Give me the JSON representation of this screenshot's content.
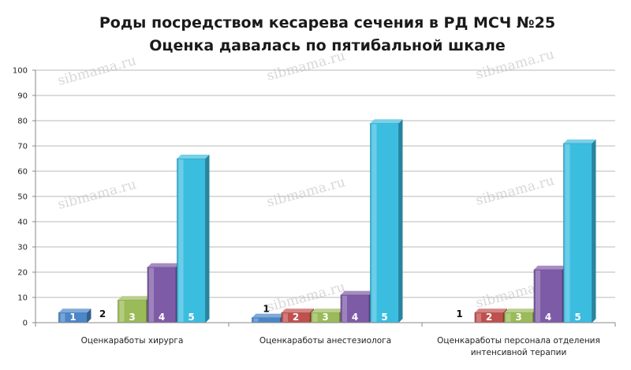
{
  "chart_data": {
    "type": "bar",
    "title": "Роды посредством кесарева сечения в РД МСЧ №25",
    "subtitle": "Оценка давалась по пятибальной шкале",
    "xlabel": "",
    "ylabel": "",
    "ylim": [
      0,
      100
    ],
    "yticks": [
      0,
      10,
      20,
      30,
      40,
      50,
      60,
      70,
      80,
      90,
      100
    ],
    "grid": true,
    "categories": [
      [
        "Оценкаработы хирурга"
      ],
      [
        "Оценкаработы анестезиолога"
      ],
      [
        "Оценкаработы персонала отделения",
        "интенсивной терапии"
      ]
    ],
    "series": [
      {
        "name": "1",
        "color": "#4a86c8",
        "values": [
          4,
          2,
          0
        ]
      },
      {
        "name": "2",
        "color": "#c0504d",
        "values": [
          0,
          4,
          4
        ]
      },
      {
        "name": "3",
        "color": "#9bbb59",
        "values": [
          9,
          4,
          4
        ]
      },
      {
        "name": "4",
        "color": "#7e5ba6",
        "values": [
          22,
          11,
          21
        ]
      },
      {
        "name": "5",
        "color": "#3bbde0",
        "values": [
          65,
          79,
          71
        ]
      }
    ]
  },
  "watermark": "sibmama.ru"
}
